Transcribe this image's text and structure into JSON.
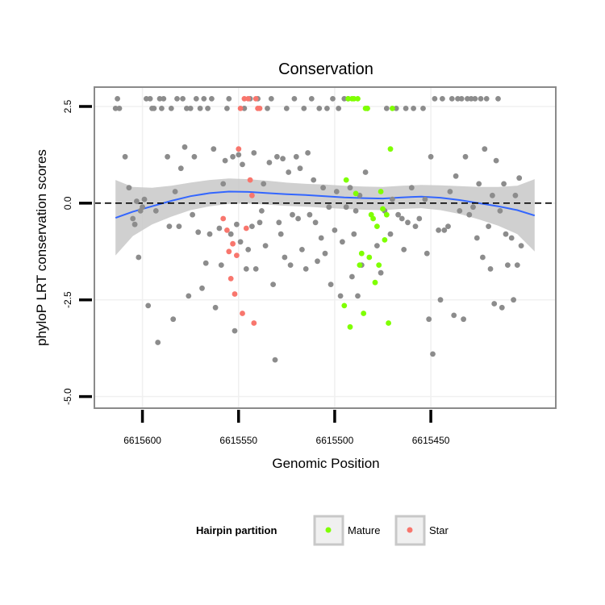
{
  "chart_data": {
    "type": "scatter",
    "title": "Conservation",
    "xlabel": "Genomic Position",
    "ylabel": "phyloP LRT conservation scores",
    "x_reversed": true,
    "xlim": [
      6615625,
      6615385
    ],
    "ylim": [
      -5.3,
      3.0
    ],
    "x_ticks": [
      6615600,
      6615550,
      6615500,
      6615450
    ],
    "x_tick_labels": [
      "6615600",
      "6615550",
      "6615500",
      "6615450"
    ],
    "y_ticks": [
      2.5,
      0,
      -2.5,
      -5
    ],
    "y_tick_labels": [
      "2.5",
      "0.0",
      "-2.5",
      "-5.0"
    ],
    "hline": 0,
    "legend": {
      "title": "Hairpin partition",
      "position": "bottom",
      "entries": [
        {
          "label": "Mature",
          "color": "#7fff00"
        },
        {
          "label": "Star",
          "color": "#f8766d"
        }
      ]
    },
    "colors": {
      "Other": "#8c8c8c",
      "Mature": "#7fff00",
      "Star": "#f8766d",
      "smooth": "#3366ff",
      "band": "#c8c8c8"
    },
    "smooth": {
      "x": [
        6615614,
        6615605,
        6615595,
        6615585,
        6615575,
        6615565,
        6615555,
        6615545,
        6615535,
        6615525,
        6615515,
        6615505,
        6615495,
        6615485,
        6615475,
        6615465,
        6615455,
        6615445,
        6615435,
        6615425,
        6615415,
        6615405,
        6615396
      ],
      "y": [
        -0.38,
        -0.22,
        -0.08,
        0.06,
        0.18,
        0.26,
        0.3,
        0.29,
        0.26,
        0.23,
        0.21,
        0.18,
        0.15,
        0.13,
        0.12,
        0.15,
        0.17,
        0.14,
        0.08,
        0.0,
        -0.08,
        -0.18,
        -0.32
      ],
      "lower": [
        -1.35,
        -0.85,
        -0.55,
        -0.35,
        -0.18,
        -0.08,
        -0.02,
        -0.01,
        -0.04,
        -0.07,
        -0.09,
        -0.12,
        -0.15,
        -0.17,
        -0.18,
        -0.15,
        -0.13,
        -0.18,
        -0.28,
        -0.42,
        -0.58,
        -0.8,
        -1.25
      ],
      "upper": [
        0.6,
        0.42,
        0.4,
        0.45,
        0.53,
        0.6,
        0.64,
        0.62,
        0.58,
        0.53,
        0.5,
        0.48,
        0.45,
        0.43,
        0.42,
        0.45,
        0.47,
        0.46,
        0.44,
        0.42,
        0.42,
        0.45,
        0.62
      ]
    },
    "series": [
      {
        "name": "Other",
        "points": [
          [
            6615614,
            2.45
          ],
          [
            6615613,
            2.7
          ],
          [
            6615612,
            2.45
          ],
          [
            6615609,
            1.2
          ],
          [
            6615607,
            0.4
          ],
          [
            6615605,
            -0.4
          ],
          [
            6615604,
            -0.55
          ],
          [
            6615603,
            0.05
          ],
          [
            6615602,
            -1.4
          ],
          [
            6615601,
            -0.2
          ],
          [
            6615600,
            -0.1
          ],
          [
            6615599,
            0.1
          ],
          [
            6615598,
            2.7
          ],
          [
            6615597,
            -2.65
          ],
          [
            6615596,
            2.7
          ],
          [
            6615595,
            2.45
          ],
          [
            6615594,
            2.45
          ],
          [
            6615593,
            -0.2
          ],
          [
            6615592,
            -3.6
          ],
          [
            6615591,
            2.7
          ],
          [
            6615590,
            2.45
          ],
          [
            6615589,
            2.7
          ],
          [
            6615587,
            1.2
          ],
          [
            6615586,
            -0.6
          ],
          [
            6615585,
            2.45
          ],
          [
            6615584,
            -3.0
          ],
          [
            6615583,
            0.3
          ],
          [
            6615582,
            2.7
          ],
          [
            6615581,
            -0.6
          ],
          [
            6615580,
            0.9
          ],
          [
            6615579,
            2.7
          ],
          [
            6615578,
            1.45
          ],
          [
            6615577,
            2.45
          ],
          [
            6615576,
            -2.4
          ],
          [
            6615575,
            2.45
          ],
          [
            6615574,
            -0.3
          ],
          [
            6615573,
            1.2
          ],
          [
            6615572,
            2.7
          ],
          [
            6615571,
            -0.75
          ],
          [
            6615570,
            2.45
          ],
          [
            6615569,
            -2.2
          ],
          [
            6615568,
            2.7
          ],
          [
            6615567,
            -1.55
          ],
          [
            6615566,
            2.45
          ],
          [
            6615565,
            -0.8
          ],
          [
            6615564,
            2.7
          ],
          [
            6615563,
            1.4
          ],
          [
            6615562,
            -2.7
          ],
          [
            6615560,
            -0.65
          ],
          [
            6615559,
            -1.6
          ],
          [
            6615558,
            0.5
          ],
          [
            6615557,
            1.1
          ],
          [
            6615556,
            2.45
          ],
          [
            6615555,
            2.7
          ],
          [
            6615554,
            -0.8
          ],
          [
            6615553,
            1.2
          ],
          [
            6615552,
            -3.3
          ],
          [
            6615551,
            -0.55
          ],
          [
            6615550,
            1.25
          ],
          [
            6615549,
            -1.0
          ],
          [
            6615548,
            1.0
          ],
          [
            6615547,
            2.45
          ],
          [
            6615546,
            -1.7
          ],
          [
            6615545,
            -1.2
          ],
          [
            6615544,
            2.7
          ],
          [
            6615543,
            -0.6
          ],
          [
            6615542,
            1.3
          ],
          [
            6615541,
            -1.7
          ],
          [
            6615540,
            2.7
          ],
          [
            6615539,
            -0.5
          ],
          [
            6615538,
            -0.2
          ],
          [
            6615537,
            0.5
          ],
          [
            6615536,
            -1.1
          ],
          [
            6615535,
            2.45
          ],
          [
            6615534,
            1.05
          ],
          [
            6615533,
            2.7
          ],
          [
            6615532,
            -2.1
          ],
          [
            6615531,
            -4.05
          ],
          [
            6615530,
            1.2
          ],
          [
            6615529,
            -0.5
          ],
          [
            6615528,
            -0.8
          ],
          [
            6615527,
            1.15
          ],
          [
            6615526,
            -1.4
          ],
          [
            6615525,
            2.45
          ],
          [
            6615524,
            0.8
          ],
          [
            6615523,
            -1.6
          ],
          [
            6615522,
            -0.3
          ],
          [
            6615521,
            2.7
          ],
          [
            6615520,
            1.2
          ],
          [
            6615519,
            -0.4
          ],
          [
            6615518,
            0.9
          ],
          [
            6615517,
            -1.2
          ],
          [
            6615516,
            2.45
          ],
          [
            6615515,
            -1.7
          ],
          [
            6615514,
            1.3
          ],
          [
            6615513,
            -0.3
          ],
          [
            6615512,
            2.7
          ],
          [
            6615511,
            0.6
          ],
          [
            6615510,
            -0.5
          ],
          [
            6615509,
            -1.5
          ],
          [
            6615508,
            2.45
          ],
          [
            6615507,
            -0.9
          ],
          [
            6615506,
            0.4
          ],
          [
            6615505,
            -1.3
          ],
          [
            6615504,
            2.45
          ],
          [
            6615503,
            -0.1
          ],
          [
            6615502,
            -2.1
          ],
          [
            6615501,
            2.7
          ],
          [
            6615500,
            -0.7
          ],
          [
            6615499,
            0.3
          ],
          [
            6615498,
            2.45
          ],
          [
            6615497,
            -2.4
          ],
          [
            6615496,
            -1.0
          ],
          [
            6615495,
            2.7
          ],
          [
            6615494,
            -0.1
          ],
          [
            6615493,
            2.7
          ],
          [
            6615492,
            0.4
          ],
          [
            6615491,
            -1.9
          ],
          [
            6615490,
            -0.8
          ],
          [
            6615489,
            -0.2
          ],
          [
            6615488,
            -2.4
          ],
          [
            6615487,
            0.2
          ],
          [
            6615486,
            -1.6
          ],
          [
            6615484,
            0.8
          ],
          [
            6615483,
            2.45
          ],
          [
            6615478,
            -1.1
          ],
          [
            6615476,
            -1.8
          ],
          [
            6615474,
            -0.2
          ],
          [
            6615473,
            2.45
          ],
          [
            6615471,
            -0.8
          ],
          [
            6615470,
            0.1
          ],
          [
            6615468,
            2.45
          ],
          [
            6615467,
            -0.3
          ],
          [
            6615465,
            -0.4
          ],
          [
            6615464,
            -1.2
          ],
          [
            6615463,
            2.45
          ],
          [
            6615462,
            -0.5
          ],
          [
            6615460,
            0.4
          ],
          [
            6615459,
            2.45
          ],
          [
            6615458,
            -0.6
          ],
          [
            6615456,
            -0.4
          ],
          [
            6615454,
            2.45
          ],
          [
            6615453,
            0.1
          ],
          [
            6615452,
            -1.3
          ],
          [
            6615451,
            -3.0
          ],
          [
            6615450,
            1.2
          ],
          [
            6615449,
            -3.9
          ],
          [
            6615448,
            2.7
          ],
          [
            6615446,
            -0.7
          ],
          [
            6615445,
            -2.5
          ],
          [
            6615444,
            2.7
          ],
          [
            6615443,
            -0.7
          ],
          [
            6615441,
            -0.6
          ],
          [
            6615440,
            0.3
          ],
          [
            6615439,
            2.7
          ],
          [
            6615438,
            -2.9
          ],
          [
            6615437,
            0.7
          ],
          [
            6615436,
            2.7
          ],
          [
            6615435,
            -0.2
          ],
          [
            6615434,
            2.7
          ],
          [
            6615433,
            -3.0
          ],
          [
            6615432,
            1.2
          ],
          [
            6615431,
            2.7
          ],
          [
            6615430,
            -0.3
          ],
          [
            6615429,
            2.7
          ],
          [
            6615428,
            -0.1
          ],
          [
            6615427,
            2.7
          ],
          [
            6615426,
            -0.9
          ],
          [
            6615425,
            0.5
          ],
          [
            6615424,
            2.7
          ],
          [
            6615423,
            -1.4
          ],
          [
            6615422,
            1.4
          ],
          [
            6615421,
            2.7
          ],
          [
            6615420,
            -0.6
          ],
          [
            6615419,
            -1.7
          ],
          [
            6615418,
            0.2
          ],
          [
            6615417,
            -2.6
          ],
          [
            6615416,
            1.1
          ],
          [
            6615415,
            2.7
          ],
          [
            6615414,
            -0.2
          ],
          [
            6615413,
            -2.7
          ],
          [
            6615412,
            0.5
          ],
          [
            6615411,
            -0.8
          ],
          [
            6615410,
            -1.6
          ],
          [
            6615408,
            -0.9
          ],
          [
            6615407,
            -2.5
          ],
          [
            6615406,
            0.2
          ],
          [
            6615405,
            -1.6
          ],
          [
            6615404,
            0.65
          ],
          [
            6615403,
            -1.1
          ]
        ]
      },
      {
        "name": "Star",
        "points": [
          [
            6615558,
            -0.4
          ],
          [
            6615556,
            -0.7
          ],
          [
            6615555,
            -1.25
          ],
          [
            6615554,
            -1.95
          ],
          [
            6615553,
            -1.05
          ],
          [
            6615552,
            -2.35
          ],
          [
            6615551,
            -1.35
          ],
          [
            6615550,
            1.4
          ],
          [
            6615549,
            2.45
          ],
          [
            6615548,
            -2.85
          ],
          [
            6615547,
            2.7
          ],
          [
            6615546,
            -0.65
          ],
          [
            6615545,
            2.7
          ],
          [
            6615544,
            0.6
          ],
          [
            6615543,
            0.2
          ],
          [
            6615542,
            -3.1
          ],
          [
            6615541,
            2.7
          ],
          [
            6615540,
            2.45
          ],
          [
            6615539,
            2.45
          ]
        ]
      },
      {
        "name": "Mature",
        "points": [
          [
            6615495,
            -2.65
          ],
          [
            6615494,
            0.6
          ],
          [
            6615493,
            2.7
          ],
          [
            6615492,
            -3.2
          ],
          [
            6615491,
            2.7
          ],
          [
            6615490,
            2.7
          ],
          [
            6615489,
            0.25
          ],
          [
            6615488,
            2.7
          ],
          [
            6615487,
            -1.6
          ],
          [
            6615486,
            -1.3
          ],
          [
            6615485,
            -2.85
          ],
          [
            6615484,
            2.45
          ],
          [
            6615483,
            2.45
          ],
          [
            6615482,
            -1.4
          ],
          [
            6615481,
            -0.3
          ],
          [
            6615480,
            -0.4
          ],
          [
            6615479,
            -2.05
          ],
          [
            6615478,
            -0.6
          ],
          [
            6615477,
            -1.6
          ],
          [
            6615476,
            0.3
          ],
          [
            6615475,
            -0.15
          ],
          [
            6615474,
            -0.95
          ],
          [
            6615473,
            -0.3
          ],
          [
            6615472,
            -3.1
          ],
          [
            6615471,
            1.4
          ],
          [
            6615470,
            2.45
          ]
        ]
      }
    ]
  }
}
